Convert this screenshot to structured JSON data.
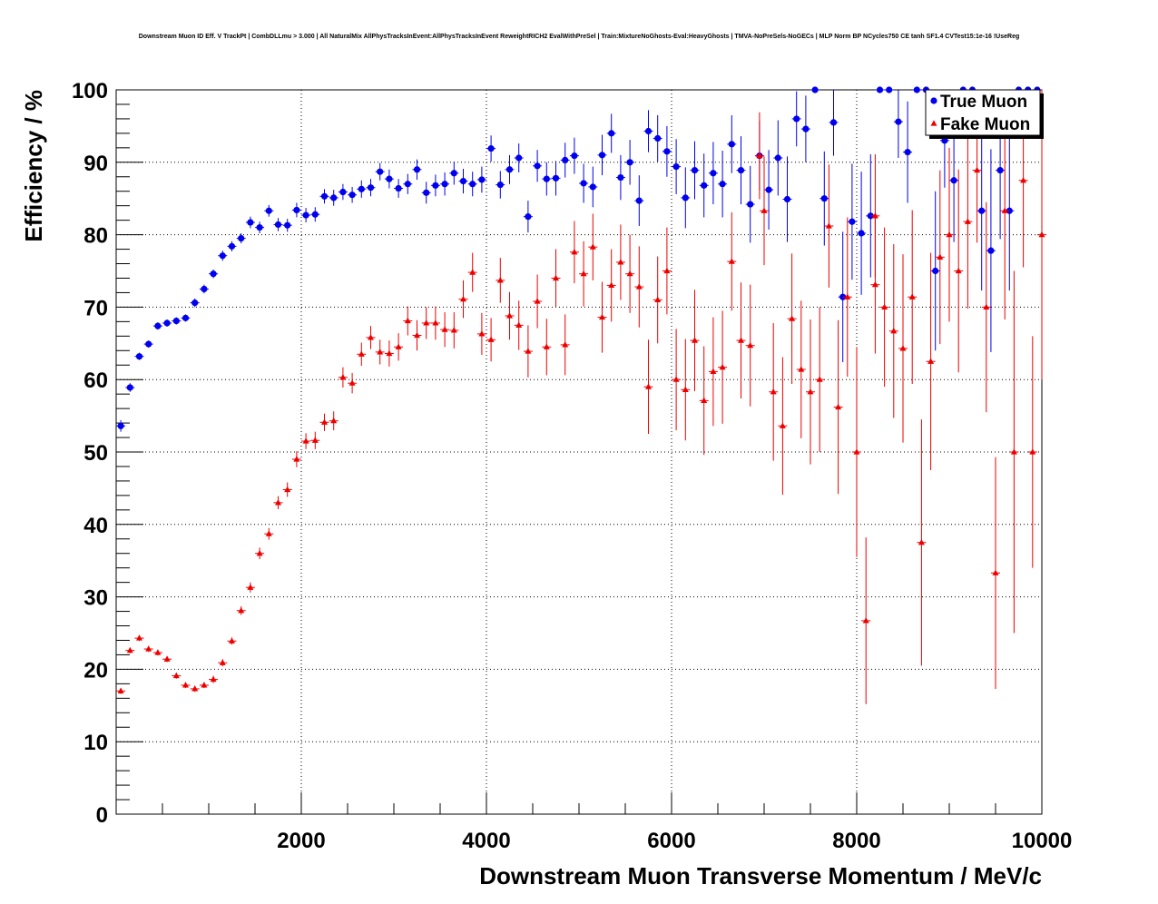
{
  "chart_data": {
    "type": "scatter",
    "title": "Downstream Muon ID Eff. V TrackPt | CombDLLmu > 3.000 | All NaturalMix AllPhysTracksInEvent:AllPhysTracksInEvent ReweightRICH2 EvalWithPreSel | Train:MixtureNoGhosts-Eval:HeavyGhosts | TMVA-NoPreSels-NoGECs | MLP Norm BP NCycles750 CE tanh SF1.4 CVTest15:1e-16 !UseReg",
    "xlabel": "Downstream Muon Transverse Momentum / MeV/c",
    "ylabel": "Efficiency / %",
    "xlim": [
      0,
      10000
    ],
    "ylim": [
      0,
      100
    ],
    "x_ticks": [
      2000,
      4000,
      6000,
      8000,
      10000
    ],
    "y_ticks": [
      0,
      10,
      20,
      30,
      40,
      50,
      60,
      70,
      80,
      90,
      100
    ],
    "grid": true,
    "legend_position": "top-right",
    "series": [
      {
        "name": "True Muon",
        "color": "#0000ee",
        "marker": "circle",
        "points": [
          [
            50,
            53.6,
            0.8
          ],
          [
            150,
            58.9,
            0.6
          ],
          [
            250,
            63.2,
            0.5
          ],
          [
            350,
            64.9,
            0.5
          ],
          [
            450,
            67.4,
            0.5
          ],
          [
            550,
            67.8,
            0.5
          ],
          [
            650,
            68.1,
            0.5
          ],
          [
            750,
            68.5,
            0.5
          ],
          [
            850,
            70.6,
            0.6
          ],
          [
            950,
            72.5,
            0.6
          ],
          [
            1050,
            74.6,
            0.6
          ],
          [
            1150,
            77.1,
            0.7
          ],
          [
            1250,
            78.4,
            0.7
          ],
          [
            1350,
            79.5,
            0.7
          ],
          [
            1450,
            81.7,
            0.8
          ],
          [
            1550,
            81.0,
            0.8
          ],
          [
            1650,
            83.3,
            0.8
          ],
          [
            1750,
            81.4,
            0.9
          ],
          [
            1850,
            81.3,
            0.9
          ],
          [
            1950,
            83.4,
            1.0
          ],
          [
            2050,
            82.7,
            1.0
          ],
          [
            2150,
            82.8,
            1.0
          ],
          [
            2250,
            85.3,
            1.0
          ],
          [
            2350,
            85.1,
            1.1
          ],
          [
            2450,
            85.9,
            1.1
          ],
          [
            2550,
            85.5,
            1.1
          ],
          [
            2650,
            86.3,
            1.2
          ],
          [
            2750,
            86.5,
            1.2
          ],
          [
            2850,
            88.7,
            1.2
          ],
          [
            2950,
            87.7,
            1.3
          ],
          [
            3050,
            86.4,
            1.3
          ],
          [
            3150,
            87.0,
            1.4
          ],
          [
            3250,
            89.0,
            1.4
          ],
          [
            3350,
            85.8,
            1.5
          ],
          [
            3450,
            86.8,
            1.5
          ],
          [
            3550,
            87.0,
            1.6
          ],
          [
            3650,
            88.5,
            1.6
          ],
          [
            3750,
            87.4,
            1.7
          ],
          [
            3850,
            87.0,
            1.7
          ],
          [
            3950,
            87.6,
            1.8
          ],
          [
            4050,
            91.9,
            1.8
          ],
          [
            4150,
            86.9,
            1.9
          ],
          [
            4250,
            89.0,
            2.0
          ],
          [
            4350,
            90.6,
            2.0
          ],
          [
            4450,
            82.5,
            2.2
          ],
          [
            4550,
            89.5,
            2.2
          ],
          [
            4650,
            87.7,
            2.3
          ],
          [
            4750,
            87.8,
            2.4
          ],
          [
            4850,
            90.3,
            2.4
          ],
          [
            4950,
            90.9,
            2.5
          ],
          [
            5050,
            87.1,
            2.7
          ],
          [
            5150,
            86.6,
            2.8
          ],
          [
            5250,
            91.0,
            2.8
          ],
          [
            5350,
            94.0,
            2.7
          ],
          [
            5450,
            87.9,
            3.1
          ],
          [
            5550,
            90.0,
            3.1
          ],
          [
            5650,
            84.7,
            3.5
          ],
          [
            5750,
            94.3,
            2.9
          ],
          [
            5850,
            93.3,
            3.2
          ],
          [
            5950,
            91.5,
            3.5
          ],
          [
            6050,
            89.4,
            3.8
          ],
          [
            6150,
            85.1,
            4.2
          ],
          [
            6250,
            88.9,
            4.0
          ],
          [
            6350,
            86.8,
            4.4
          ],
          [
            6450,
            88.5,
            4.3
          ],
          [
            6550,
            87.0,
            4.6
          ],
          [
            6650,
            92.5,
            4.0
          ],
          [
            6750,
            88.9,
            4.7
          ],
          [
            6850,
            84.2,
            5.3
          ],
          [
            6950,
            90.9,
            4.8
          ],
          [
            7050,
            86.2,
            5.5
          ],
          [
            7150,
            90.6,
            5.2
          ],
          [
            7250,
            84.9,
            5.9
          ],
          [
            7350,
            96.0,
            3.8
          ],
          [
            7450,
            94.6,
            4.6
          ],
          [
            7550,
            100.0,
            0
          ],
          [
            7650,
            85.0,
            6.5
          ],
          [
            7750,
            95.5,
            4.6
          ],
          [
            7850,
            71.4,
            9.0
          ],
          [
            7950,
            81.8,
            8.0
          ],
          [
            8050,
            80.2,
            8.5
          ],
          [
            8150,
            82.6,
            8.5
          ],
          [
            8250,
            100.0,
            0
          ],
          [
            8350,
            100.0,
            0
          ],
          [
            8450,
            95.6,
            5.0
          ],
          [
            8550,
            91.4,
            7.0
          ],
          [
            8650,
            100.0,
            0
          ],
          [
            8750,
            100.0,
            0
          ],
          [
            8850,
            75.0,
            11.0
          ],
          [
            8950,
            93.0,
            6.5
          ],
          [
            9050,
            87.5,
            8.5
          ],
          [
            9150,
            100.0,
            0
          ],
          [
            9250,
            100.0,
            0
          ],
          [
            9350,
            83.3,
            11.0
          ],
          [
            9450,
            77.8,
            14.0
          ],
          [
            9550,
            88.9,
            9.5
          ],
          [
            9650,
            83.3,
            11.0
          ],
          [
            9750,
            100.0,
            0
          ],
          [
            9850,
            100.0,
            0
          ],
          [
            9950,
            100.0,
            0
          ]
        ]
      },
      {
        "name": "Fake Muon",
        "color": "#ee0000",
        "marker": "triangle",
        "points": [
          [
            50,
            17.0,
            0.4
          ],
          [
            150,
            22.6,
            0.4
          ],
          [
            250,
            24.3,
            0.4
          ],
          [
            350,
            22.8,
            0.4
          ],
          [
            450,
            22.3,
            0.4
          ],
          [
            550,
            21.4,
            0.4
          ],
          [
            650,
            19.1,
            0.4
          ],
          [
            750,
            17.8,
            0.4
          ],
          [
            850,
            17.3,
            0.4
          ],
          [
            950,
            17.8,
            0.4
          ],
          [
            1050,
            18.6,
            0.5
          ],
          [
            1150,
            20.9,
            0.5
          ],
          [
            1250,
            23.9,
            0.5
          ],
          [
            1350,
            28.1,
            0.6
          ],
          [
            1450,
            31.3,
            0.7
          ],
          [
            1550,
            36.0,
            0.8
          ],
          [
            1650,
            38.7,
            0.8
          ],
          [
            1750,
            43.0,
            0.9
          ],
          [
            1850,
            44.8,
            1.0
          ],
          [
            1950,
            49.0,
            1.1
          ],
          [
            2050,
            51.5,
            1.1
          ],
          [
            2150,
            51.6,
            1.2
          ],
          [
            2250,
            54.1,
            1.2
          ],
          [
            2350,
            54.3,
            1.3
          ],
          [
            2450,
            60.3,
            1.4
          ],
          [
            2550,
            59.5,
            1.4
          ],
          [
            2650,
            63.5,
            1.6
          ],
          [
            2750,
            65.8,
            1.6
          ],
          [
            2850,
            63.8,
            1.7
          ],
          [
            2950,
            63.6,
            1.8
          ],
          [
            3050,
            64.5,
            1.9
          ],
          [
            3150,
            68.1,
            2.0
          ],
          [
            3250,
            66.1,
            2.1
          ],
          [
            3350,
            67.8,
            2.2
          ],
          [
            3450,
            67.8,
            2.3
          ],
          [
            3550,
            66.9,
            2.4
          ],
          [
            3650,
            66.8,
            2.5
          ],
          [
            3750,
            71.1,
            2.6
          ],
          [
            3850,
            74.8,
            2.7
          ],
          [
            3950,
            66.3,
            2.9
          ],
          [
            4050,
            65.5,
            3.0
          ],
          [
            4150,
            73.7,
            3.1
          ],
          [
            4250,
            68.8,
            3.3
          ],
          [
            4350,
            67.5,
            3.4
          ],
          [
            4450,
            63.9,
            3.6
          ],
          [
            4550,
            70.8,
            3.7
          ],
          [
            4650,
            64.5,
            3.9
          ],
          [
            4750,
            74.0,
            4.0
          ],
          [
            4850,
            64.8,
            4.2
          ],
          [
            4950,
            77.6,
            4.3
          ],
          [
            5050,
            74.6,
            4.5
          ],
          [
            5150,
            78.3,
            4.6
          ],
          [
            5250,
            68.6,
            4.9
          ],
          [
            5350,
            73.0,
            5.0
          ],
          [
            5450,
            76.2,
            5.2
          ],
          [
            5550,
            74.6,
            5.4
          ],
          [
            5650,
            72.8,
            5.6
          ],
          [
            5750,
            59.0,
            6.5
          ],
          [
            5850,
            71.0,
            6.0
          ],
          [
            5950,
            75.0,
            6.0
          ],
          [
            6050,
            60.0,
            7.0
          ],
          [
            6150,
            58.6,
            7.0
          ],
          [
            6250,
            65.4,
            7.0
          ],
          [
            6350,
            57.1,
            7.5
          ],
          [
            6450,
            61.1,
            7.5
          ],
          [
            6550,
            61.7,
            7.8
          ],
          [
            6650,
            76.3,
            6.8
          ],
          [
            6750,
            65.4,
            8.0
          ],
          [
            6850,
            64.7,
            8.4
          ],
          [
            6950,
            90.9,
            6.0
          ],
          [
            7000,
            83.3,
            7.5
          ],
          [
            7100,
            58.3,
            9.5
          ],
          [
            7200,
            53.6,
            9.5
          ],
          [
            7300,
            68.4,
            9.0
          ],
          [
            7400,
            61.4,
            9.5
          ],
          [
            7500,
            58.3,
            10.0
          ],
          [
            7600,
            60.0,
            10.0
          ],
          [
            7700,
            81.2,
            8.5
          ],
          [
            7800,
            56.2,
            12.0
          ],
          [
            7900,
            71.4,
            11.0
          ],
          [
            8000,
            50.0,
            14.5
          ],
          [
            8100,
            26.7,
            11.5
          ],
          [
            8200,
            82.6,
            8.5
          ],
          [
            8200,
            73.1,
            9.5
          ],
          [
            8300,
            70.0,
            11.0
          ],
          [
            8400,
            66.7,
            12.0
          ],
          [
            8500,
            64.3,
            13.0
          ],
          [
            8600,
            71.4,
            12.0
          ],
          [
            8700,
            37.5,
            17.0
          ],
          [
            8800,
            62.5,
            15.0
          ],
          [
            8900,
            76.9,
            12.0
          ],
          [
            9000,
            80.0,
            12.0
          ],
          [
            9100,
            75.0,
            14.0
          ],
          [
            9200,
            81.8,
            12.0
          ],
          [
            9300,
            88.9,
            10.0
          ],
          [
            9400,
            70.0,
            14.5
          ],
          [
            9500,
            33.3,
            16.0
          ],
          [
            9600,
            83.3,
            15.0
          ],
          [
            9700,
            50.0,
            25.0
          ],
          [
            9800,
            87.5,
            12.0
          ],
          [
            9900,
            50.0,
            16.0
          ],
          [
            10000,
            80.0,
            20.0
          ]
        ]
      }
    ]
  }
}
